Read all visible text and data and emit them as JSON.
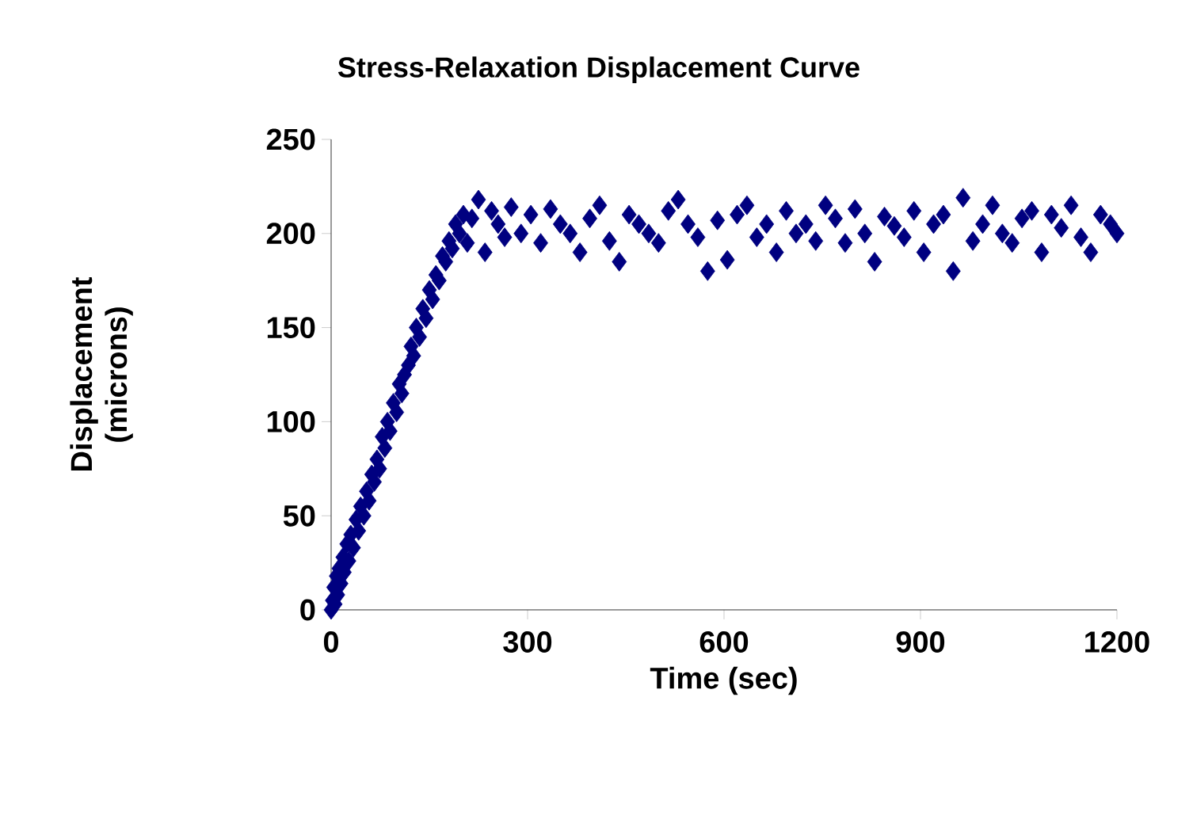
{
  "chart_data": {
    "type": "scatter",
    "title": "Stress-Relaxation Displacement Curve",
    "xlabel": "Time (sec)",
    "ylabel": "Displacement (microns)",
    "xlim": [
      0,
      1200
    ],
    "xticks": [
      0,
      300,
      600,
      900,
      1200
    ],
    "ylim": [
      0,
      250
    ],
    "yticks": [
      0,
      50,
      100,
      150,
      200,
      250
    ],
    "marker": "diamond",
    "grid": false,
    "series": [
      {
        "color": "#000080",
        "x": [
          0,
          2,
          4,
          6,
          8,
          10,
          12,
          15,
          18,
          20,
          24,
          27,
          30,
          34,
          38,
          42,
          45,
          50,
          54,
          58,
          62,
          66,
          70,
          74,
          78,
          82,
          86,
          90,
          95,
          100,
          104,
          108,
          112,
          118,
          122,
          126,
          130,
          135,
          140,
          145,
          150,
          155,
          160,
          165,
          170,
          175,
          180,
          185,
          190,
          196,
          202,
          208,
          215,
          225,
          235,
          245,
          255,
          265,
          275,
          290,
          305,
          320,
          335,
          350,
          365,
          380,
          395,
          410,
          425,
          440,
          455,
          470,
          485,
          500,
          515,
          530,
          545,
          560,
          575,
          590,
          605,
          620,
          635,
          650,
          665,
          680,
          695,
          710,
          725,
          740,
          755,
          770,
          785,
          800,
          815,
          830,
          845,
          860,
          875,
          890,
          905,
          920,
          935,
          950,
          965,
          980,
          995,
          1010,
          1025,
          1040,
          1055,
          1070,
          1085,
          1100,
          1115,
          1130,
          1145,
          1160,
          1175,
          1190,
          1200
        ],
        "values": [
          0,
          5,
          12,
          3,
          18,
          8,
          22,
          14,
          28,
          20,
          35,
          26,
          40,
          33,
          48,
          42,
          55,
          50,
          63,
          58,
          72,
          68,
          80,
          75,
          92,
          86,
          100,
          95,
          110,
          105,
          120,
          115,
          125,
          130,
          140,
          135,
          150,
          145,
          160,
          155,
          170,
          165,
          178,
          175,
          188,
          185,
          196,
          192,
          205,
          200,
          210,
          195,
          208,
          218,
          190,
          212,
          205,
          198,
          214,
          200,
          210,
          195,
          213,
          205,
          200,
          190,
          208,
          215,
          196,
          185,
          210,
          205,
          200,
          195,
          212,
          218,
          205,
          198,
          180,
          207,
          186,
          210,
          215,
          198,
          205,
          190,
          212,
          200,
          205,
          196,
          215,
          208,
          195,
          213,
          200,
          185,
          209,
          204,
          198,
          212,
          190,
          205,
          210,
          180,
          219,
          196,
          205,
          215,
          200,
          195,
          208,
          212,
          190,
          210,
          203,
          215,
          198,
          190,
          210,
          205,
          200
        ]
      }
    ]
  }
}
